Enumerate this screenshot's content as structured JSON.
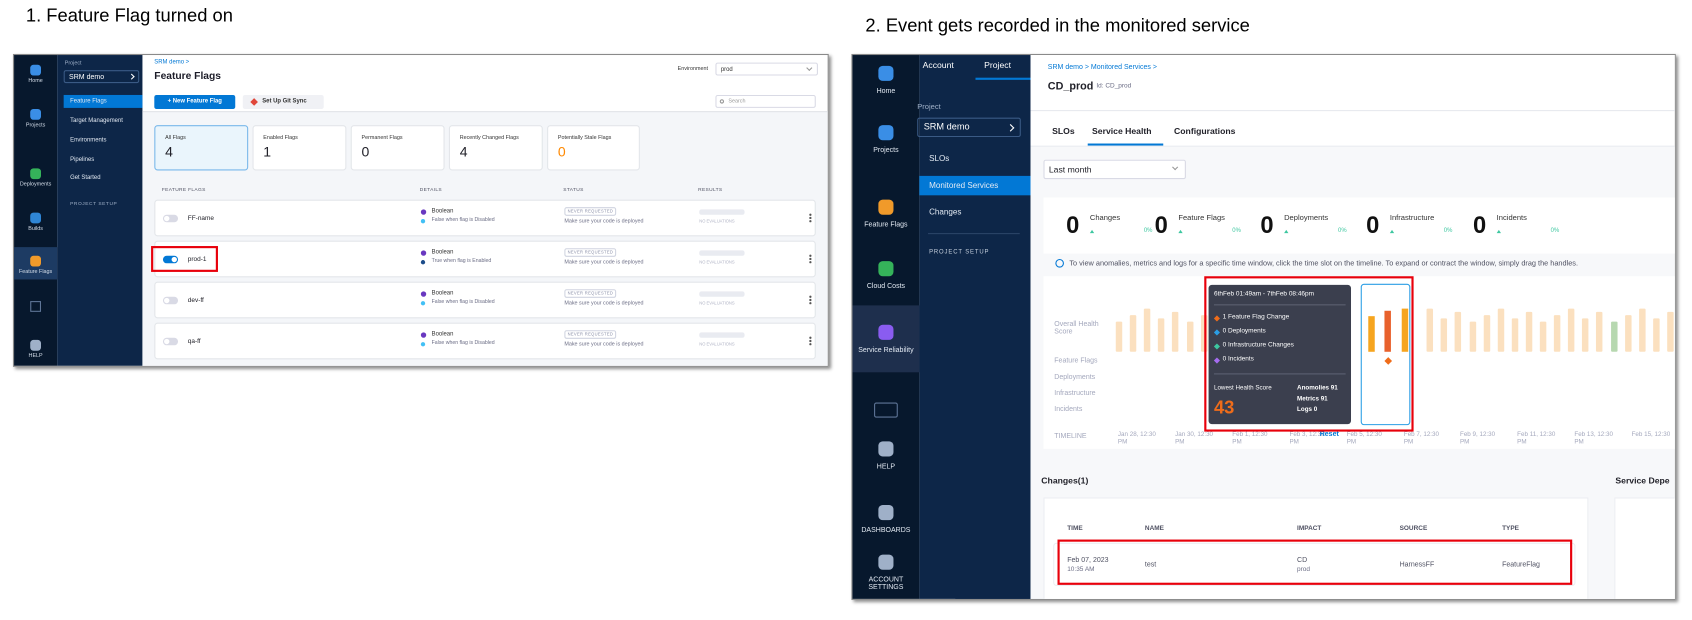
{
  "left_panel": {
    "heading": "1. Feature Flag turned on",
    "nav": [
      "Home",
      "Projects",
      "Deployments",
      "Builds",
      "Feature Flags",
      "HELP"
    ],
    "sidebar": {
      "project_label": "Project",
      "project": "SRM demo",
      "items": [
        "Feature Flags",
        "Target Management",
        "Environments",
        "Pipelines",
        "Get Started"
      ],
      "project_setup": "PROJECT SETUP"
    },
    "breadcrumb": "SRM demo >",
    "title": "Feature Flags",
    "environment_label": "Environment",
    "environment": "prod",
    "buttons": [
      "+ New Feature Flag",
      "Set Up Git Sync"
    ],
    "search_placeholder": "Search",
    "stats": [
      {
        "label": "All Flags",
        "value": 4
      },
      {
        "label": "Enabled Flags",
        "value": 1
      },
      {
        "label": "Permanent Flags",
        "value": 0
      },
      {
        "label": "Recently Changed Flags",
        "value": 4
      },
      {
        "label": "Potentially Stale Flags",
        "value": 0
      }
    ],
    "table": {
      "columns": [
        "FEATURE FLAGS",
        "DETAILS",
        "STATUS",
        "RESULTS"
      ],
      "rows": [
        {
          "name": "FF-name",
          "enabled": false,
          "type": "Boolean",
          "description": "False when flag is Disabled",
          "status": "NEVER REQUESTED",
          "status_note": "Make sure your code is deployed",
          "results": "NO EVALUATIONS"
        },
        {
          "name": "prod-1",
          "enabled": true,
          "type": "Boolean",
          "description": "True when flag is Enabled",
          "status": "NEVER REQUESTED",
          "status_note": "Make sure your code is deployed",
          "results": "NO EVALUATIONS"
        },
        {
          "name": "dev-ff",
          "enabled": false,
          "type": "Boolean",
          "description": "False when flag is Disabled",
          "status": "NEVER REQUESTED",
          "status_note": "Make sure your code is deployed",
          "results": "NO EVALUATIONS"
        },
        {
          "name": "qa-ff",
          "enabled": false,
          "type": "Boolean",
          "description": "False when flag is Disabled",
          "status": "NEVER REQUESTED",
          "status_note": "Make sure your code is deployed",
          "results": "NO EVALUATIONS"
        }
      ]
    }
  },
  "right_panel": {
    "heading": "2. Event gets recorded in the monitored service",
    "nav": [
      "Home",
      "Projects",
      "Feature Flags",
      "Cloud Costs",
      "Service Reliability",
      "HELP",
      "DASHBOARDS",
      "ACCOUNT SETTINGS"
    ],
    "sidebar": {
      "tabs": [
        "Account",
        "Project"
      ],
      "project_label": "Project",
      "project": "SRM demo",
      "items": [
        "SLOs",
        "Monitored Services",
        "Changes"
      ],
      "project_setup": "PROJECT SETUP"
    },
    "breadcrumb": "SRM demo > Monitored Services >",
    "title": "CD_prod",
    "id": "Id: CD_prod",
    "tabs": [
      "SLOs",
      "Service Health",
      "Configurations"
    ],
    "period": "Last month",
    "summary": [
      {
        "count": 0,
        "label": "Changes",
        "change": "0%"
      },
      {
        "count": 0,
        "label": "Feature Flags",
        "change": "0%"
      },
      {
        "count": 0,
        "label": "Deployments",
        "change": "0%"
      },
      {
        "count": 0,
        "label": "Infrastructure",
        "change": "0%"
      },
      {
        "count": 0,
        "label": "Incidents",
        "change": "0%"
      }
    ],
    "info": "To view anomalies, metrics and logs for a specific time window, click the time slot on the timeline. To expand or contract the window, simply drag the handles.",
    "row_labels": [
      "Overall Health Score",
      "Feature Flags",
      "Deployments",
      "Infrastructure",
      "Incidents",
      "TIMELINE"
    ],
    "timeline": [
      "Jan 28, 12:30 PM",
      "Jan 30, 12:30 PM",
      "Feb 1, 12:30 PM",
      "Feb 3, 12:30 PM",
      "Feb 5, 12:30 PM",
      "Feb 7, 12:30 PM",
      "Feb 9, 12:30 PM",
      "Feb 11, 12:30 PM",
      "Feb 13, 12:30 PM",
      "Feb 15, 12:30"
    ],
    "reset": "Reset",
    "tooltip": {
      "range": "6thFeb 01:49am - 7thFeb 08:46pm",
      "items": [
        "1 Feature Flag Change",
        "0 Deployments",
        "0 Infrastructure Changes",
        "0 Incidents"
      ],
      "score_label": "Lowest Health Score",
      "score": 43,
      "stats": [
        "Anomolies 91",
        "Metrics 91",
        "Logs 0"
      ]
    },
    "changes_title": "Changes(1)",
    "dependencies_title": "Service Depe",
    "table": {
      "columns": [
        "TIME",
        "NAME",
        "IMPACT",
        "SOURCE",
        "TYPE"
      ],
      "rows": [
        {
          "date": "Feb 07, 2023",
          "time": "10:35 AM",
          "name": "test",
          "impact": "CD",
          "impact_env": "prod",
          "source": "HarnessFF",
          "type": "FeatureFlag"
        }
      ]
    }
  }
}
